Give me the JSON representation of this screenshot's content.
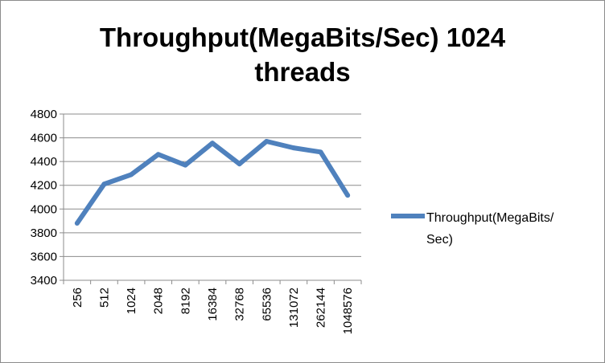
{
  "chart_data": {
    "type": "line",
    "title_lines": [
      "Throughput(MegaBits/Sec) 1024",
      "threads"
    ],
    "categories": [
      "256",
      "512",
      "1024",
      "2048",
      "8192",
      "16384",
      "32768",
      "65536",
      "131072",
      "262144",
      "1048576"
    ],
    "series": [
      {
        "name": "Throughput(MegaBits/Sec)",
        "name_lines": [
          "Throughput(MegaBits/",
          "Sec)"
        ],
        "color": "#4F81BD",
        "values": [
          3880,
          4210,
          4290,
          4460,
          4370,
          4555,
          4380,
          4570,
          4515,
          4480,
          4115
        ]
      }
    ],
    "ylim": [
      3400,
      4800
    ],
    "yticks": [
      3400,
      3600,
      3800,
      4000,
      4200,
      4400,
      4600,
      4800
    ],
    "grid": true,
    "legend_position": "right"
  }
}
